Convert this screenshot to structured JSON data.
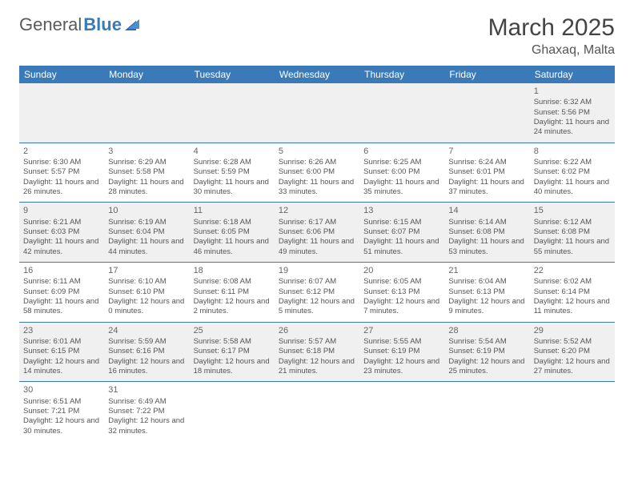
{
  "logo": {
    "general": "General",
    "blue": "Blue"
  },
  "title": "March 2025",
  "location": "Ghaxaq, Malta",
  "header_bg": "#3a7ab8",
  "header_fg": "#ffffff",
  "row_border": "#3a7ab8",
  "alt_row_bg": "#f0f0f0",
  "weekdays": [
    "Sunday",
    "Monday",
    "Tuesday",
    "Wednesday",
    "Thursday",
    "Friday",
    "Saturday"
  ],
  "weeks": [
    [
      null,
      null,
      null,
      null,
      null,
      null,
      {
        "n": "1",
        "sr": "Sunrise: 6:32 AM",
        "ss": "Sunset: 5:56 PM",
        "dl": "Daylight: 11 hours and 24 minutes."
      }
    ],
    [
      {
        "n": "2",
        "sr": "Sunrise: 6:30 AM",
        "ss": "Sunset: 5:57 PM",
        "dl": "Daylight: 11 hours and 26 minutes."
      },
      {
        "n": "3",
        "sr": "Sunrise: 6:29 AM",
        "ss": "Sunset: 5:58 PM",
        "dl": "Daylight: 11 hours and 28 minutes."
      },
      {
        "n": "4",
        "sr": "Sunrise: 6:28 AM",
        "ss": "Sunset: 5:59 PM",
        "dl": "Daylight: 11 hours and 30 minutes."
      },
      {
        "n": "5",
        "sr": "Sunrise: 6:26 AM",
        "ss": "Sunset: 6:00 PM",
        "dl": "Daylight: 11 hours and 33 minutes."
      },
      {
        "n": "6",
        "sr": "Sunrise: 6:25 AM",
        "ss": "Sunset: 6:00 PM",
        "dl": "Daylight: 11 hours and 35 minutes."
      },
      {
        "n": "7",
        "sr": "Sunrise: 6:24 AM",
        "ss": "Sunset: 6:01 PM",
        "dl": "Daylight: 11 hours and 37 minutes."
      },
      {
        "n": "8",
        "sr": "Sunrise: 6:22 AM",
        "ss": "Sunset: 6:02 PM",
        "dl": "Daylight: 11 hours and 40 minutes."
      }
    ],
    [
      {
        "n": "9",
        "sr": "Sunrise: 6:21 AM",
        "ss": "Sunset: 6:03 PM",
        "dl": "Daylight: 11 hours and 42 minutes."
      },
      {
        "n": "10",
        "sr": "Sunrise: 6:19 AM",
        "ss": "Sunset: 6:04 PM",
        "dl": "Daylight: 11 hours and 44 minutes."
      },
      {
        "n": "11",
        "sr": "Sunrise: 6:18 AM",
        "ss": "Sunset: 6:05 PM",
        "dl": "Daylight: 11 hours and 46 minutes."
      },
      {
        "n": "12",
        "sr": "Sunrise: 6:17 AM",
        "ss": "Sunset: 6:06 PM",
        "dl": "Daylight: 11 hours and 49 minutes."
      },
      {
        "n": "13",
        "sr": "Sunrise: 6:15 AM",
        "ss": "Sunset: 6:07 PM",
        "dl": "Daylight: 11 hours and 51 minutes."
      },
      {
        "n": "14",
        "sr": "Sunrise: 6:14 AM",
        "ss": "Sunset: 6:08 PM",
        "dl": "Daylight: 11 hours and 53 minutes."
      },
      {
        "n": "15",
        "sr": "Sunrise: 6:12 AM",
        "ss": "Sunset: 6:08 PM",
        "dl": "Daylight: 11 hours and 55 minutes."
      }
    ],
    [
      {
        "n": "16",
        "sr": "Sunrise: 6:11 AM",
        "ss": "Sunset: 6:09 PM",
        "dl": "Daylight: 11 hours and 58 minutes."
      },
      {
        "n": "17",
        "sr": "Sunrise: 6:10 AM",
        "ss": "Sunset: 6:10 PM",
        "dl": "Daylight: 12 hours and 0 minutes."
      },
      {
        "n": "18",
        "sr": "Sunrise: 6:08 AM",
        "ss": "Sunset: 6:11 PM",
        "dl": "Daylight: 12 hours and 2 minutes."
      },
      {
        "n": "19",
        "sr": "Sunrise: 6:07 AM",
        "ss": "Sunset: 6:12 PM",
        "dl": "Daylight: 12 hours and 5 minutes."
      },
      {
        "n": "20",
        "sr": "Sunrise: 6:05 AM",
        "ss": "Sunset: 6:13 PM",
        "dl": "Daylight: 12 hours and 7 minutes."
      },
      {
        "n": "21",
        "sr": "Sunrise: 6:04 AM",
        "ss": "Sunset: 6:13 PM",
        "dl": "Daylight: 12 hours and 9 minutes."
      },
      {
        "n": "22",
        "sr": "Sunrise: 6:02 AM",
        "ss": "Sunset: 6:14 PM",
        "dl": "Daylight: 12 hours and 11 minutes."
      }
    ],
    [
      {
        "n": "23",
        "sr": "Sunrise: 6:01 AM",
        "ss": "Sunset: 6:15 PM",
        "dl": "Daylight: 12 hours and 14 minutes."
      },
      {
        "n": "24",
        "sr": "Sunrise: 5:59 AM",
        "ss": "Sunset: 6:16 PM",
        "dl": "Daylight: 12 hours and 16 minutes."
      },
      {
        "n": "25",
        "sr": "Sunrise: 5:58 AM",
        "ss": "Sunset: 6:17 PM",
        "dl": "Daylight: 12 hours and 18 minutes."
      },
      {
        "n": "26",
        "sr": "Sunrise: 5:57 AM",
        "ss": "Sunset: 6:18 PM",
        "dl": "Daylight: 12 hours and 21 minutes."
      },
      {
        "n": "27",
        "sr": "Sunrise: 5:55 AM",
        "ss": "Sunset: 6:19 PM",
        "dl": "Daylight: 12 hours and 23 minutes."
      },
      {
        "n": "28",
        "sr": "Sunrise: 5:54 AM",
        "ss": "Sunset: 6:19 PM",
        "dl": "Daylight: 12 hours and 25 minutes."
      },
      {
        "n": "29",
        "sr": "Sunrise: 5:52 AM",
        "ss": "Sunset: 6:20 PM",
        "dl": "Daylight: 12 hours and 27 minutes."
      }
    ],
    [
      {
        "n": "30",
        "sr": "Sunrise: 6:51 AM",
        "ss": "Sunset: 7:21 PM",
        "dl": "Daylight: 12 hours and 30 minutes."
      },
      {
        "n": "31",
        "sr": "Sunrise: 6:49 AM",
        "ss": "Sunset: 7:22 PM",
        "dl": "Daylight: 12 hours and 32 minutes."
      },
      null,
      null,
      null,
      null,
      null
    ]
  ]
}
